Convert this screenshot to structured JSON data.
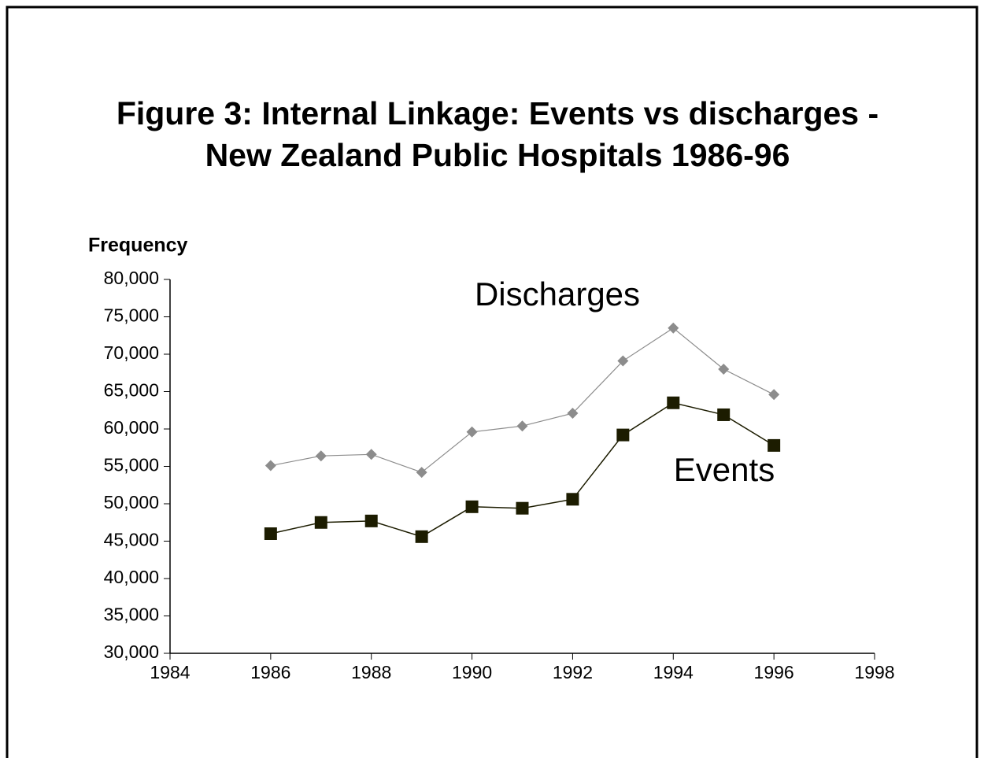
{
  "chart_data": {
    "type": "line",
    "title": [
      "Figure 3: Internal Linkage: Events vs discharges -",
      "New Zealand Public Hospitals 1986-96"
    ],
    "y_label": "Frequency",
    "x": [
      1986,
      1987,
      1988,
      1989,
      1990,
      1991,
      1992,
      1993,
      1994,
      1995,
      1996
    ],
    "series": [
      {
        "name": "Discharges",
        "color": "#8c8c8c",
        "marker": "diamond",
        "values": [
          55100,
          56400,
          56600,
          54200,
          59600,
          60400,
          62100,
          69100,
          73500,
          68000,
          64600
        ]
      },
      {
        "name": "Events",
        "color": "#1c1c00",
        "marker": "square",
        "values": [
          46000,
          47500,
          47700,
          45600,
          49600,
          49400,
          50600,
          59200,
          63500,
          61900,
          57800
        ]
      }
    ],
    "xlim": [
      1984,
      1998
    ],
    "xticks": [
      1984,
      1986,
      1988,
      1990,
      1992,
      1994,
      1996,
      1998
    ],
    "ylim": [
      30000,
      80000
    ],
    "yticks": [
      {
        "value": 30000,
        "label": "30,000"
      },
      {
        "value": 35000,
        "label": "35,000"
      },
      {
        "value": 40000,
        "label": "40,000"
      },
      {
        "value": 45000,
        "label": "45,000"
      },
      {
        "value": 50000,
        "label": "50,000"
      },
      {
        "value": 55000,
        "label": "55,000"
      },
      {
        "value": 60000,
        "label": "60,000"
      },
      {
        "value": 65000,
        "label": "65,000"
      },
      {
        "value": 70000,
        "label": "70,000"
      },
      {
        "value": 75000,
        "label": "75,000"
      },
      {
        "value": 80000,
        "label": "80,000"
      }
    ],
    "grid": false
  }
}
